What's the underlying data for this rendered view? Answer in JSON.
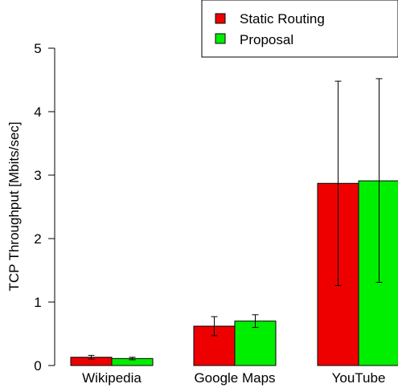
{
  "chart_data": {
    "type": "bar",
    "title": "",
    "xlabel": "",
    "ylabel": "TCP Throughput [Mbits/sec]",
    "ylim": [
      0,
      5
    ],
    "yticks": [
      0,
      1,
      2,
      3,
      4,
      5
    ],
    "categories": [
      "Wikipedia",
      "Google Maps",
      "YouTube"
    ],
    "legend_position": "top-right",
    "series": [
      {
        "name": "Static Routing",
        "color": "#ee0000",
        "values": [
          0.13,
          0.62,
          2.87
        ],
        "err_low": [
          0.1,
          0.47,
          1.26
        ],
        "err_high": [
          0.16,
          0.77,
          4.48
        ]
      },
      {
        "name": "Proposal",
        "color": "#00ee00",
        "values": [
          0.11,
          0.7,
          2.91
        ],
        "err_low": [
          0.09,
          0.6,
          1.31
        ],
        "err_high": [
          0.13,
          0.8,
          4.52
        ]
      }
    ]
  }
}
